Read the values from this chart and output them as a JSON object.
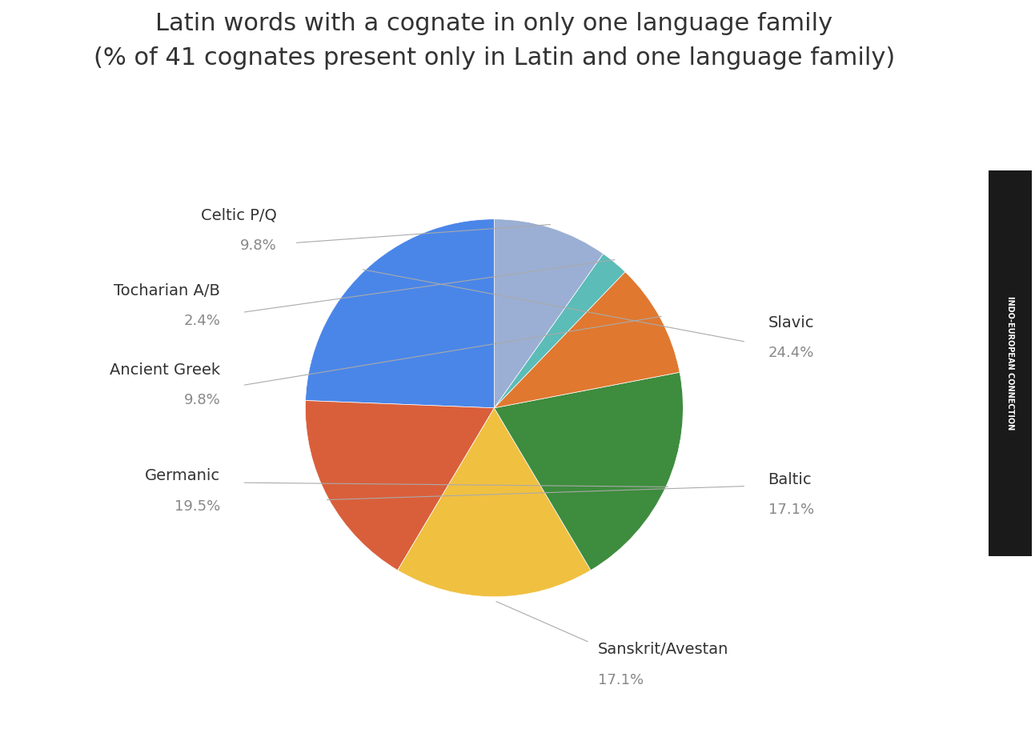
{
  "title": "Latin words with a cognate in only one language family",
  "subtitle": "(% of 41 cognates present only in Latin and one language family)",
  "labels": [
    "Slavic",
    "Baltic",
    "Sanskrit/Avestan",
    "Germanic",
    "Ancient Greek",
    "Tocharian A/B",
    "Celtic P/Q"
  ],
  "values": [
    24.4,
    17.1,
    17.1,
    19.5,
    9.8,
    2.4,
    9.8
  ],
  "colors": [
    "#4a86e8",
    "#d95f3b",
    "#f0c040",
    "#3e8c3e",
    "#e07830",
    "#5bbcb8",
    "#9bafd4"
  ],
  "title_fontsize": 22,
  "subtitle_fontsize": 16,
  "label_fontsize": 14,
  "pct_fontsize": 13,
  "background_color": "#ffffff",
  "label_color": "#333333",
  "pct_color": "#888888",
  "startangle": 90
}
